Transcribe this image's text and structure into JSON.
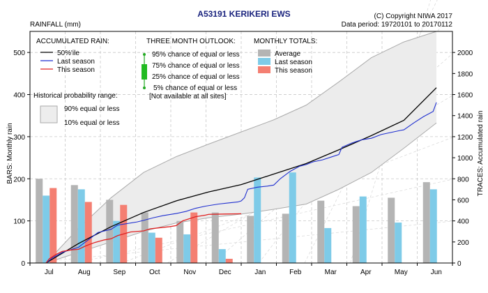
{
  "header": {
    "title": "A53191  KERIKERI EWS",
    "copyright": "(C) Copyright NIWA  2017",
    "data_period": "Data period:  19720101  to  20170112",
    "units": "RAINFALL (mm)"
  },
  "axes": {
    "left_label": "BARS: Monthly rain",
    "right_label": "TRACES: Accumulated rain"
  },
  "legend_accum": {
    "title": "ACCUMULATED RAIN:",
    "items": [
      "50%'ile",
      "Last season",
      "This season"
    ],
    "colors": [
      "#000000",
      "#1f2fd0",
      "#e02020"
    ]
  },
  "legend_hist": {
    "title": "Historical probability range:",
    "items": [
      "90% equal or less",
      "10% equal or less"
    ]
  },
  "legend_outlook": {
    "title": "THREE MONTH OUTLOOK:",
    "items": [
      "95% chance of equal or less",
      "75% chance of equal or less",
      "25% chance of equal or less",
      "5% chance of equal or less"
    ],
    "note": "[Not available at all sites]"
  },
  "legend_monthly": {
    "title": "MONTHLY TOTALS:",
    "items": [
      "Average",
      "Last season",
      "This season"
    ],
    "colors": [
      "#b4b4b4",
      "#7ecbe8",
      "#f47f72"
    ]
  },
  "chart_data": {
    "type": "bar",
    "categories": [
      "Jul",
      "Aug",
      "Sep",
      "Oct",
      "Nov",
      "Dec",
      "Jan",
      "Feb",
      "Mar",
      "Apr",
      "May",
      "Jun"
    ],
    "ylim_left": [
      0,
      550
    ],
    "left_ticks": [
      0,
      100,
      200,
      300,
      400,
      500
    ],
    "ylim_right": [
      0,
      2200
    ],
    "right_ticks": [
      0,
      200,
      400,
      600,
      800,
      1000,
      1200,
      1400,
      1600,
      1800,
      2000
    ],
    "series": [
      {
        "name": "Average",
        "color": "#b4b4b4",
        "values": [
          200,
          185,
          150,
          120,
          100,
          120,
          112,
          117,
          148,
          135,
          155,
          192
        ]
      },
      {
        "name": "Last season",
        "color": "#7ecbe8",
        "values": [
          160,
          175,
          100,
          72,
          68,
          33,
          203,
          215,
          83,
          158,
          96,
          175
        ]
      },
      {
        "name": "This season",
        "color": "#f47f72",
        "values": [
          178,
          145,
          138,
          60,
          120,
          10,
          null,
          null,
          null,
          null,
          null,
          null
        ]
      }
    ],
    "accumulated": {
      "x_unit": "month index from 1 Jul",
      "median": {
        "name": "50%'ile",
        "color": "#000000",
        "points": [
          [
            0,
            0
          ],
          [
            1,
            185
          ],
          [
            2,
            345
          ],
          [
            3,
            480
          ],
          [
            4,
            590
          ],
          [
            5,
            675
          ],
          [
            6,
            745
          ],
          [
            7,
            845
          ],
          [
            8,
            945
          ],
          [
            9,
            1075
          ],
          [
            10,
            1210
          ],
          [
            11,
            1355
          ],
          [
            12,
            1665
          ]
        ]
      },
      "p90": {
        "name": "90% equal or less",
        "points": [
          [
            0,
            0
          ],
          [
            1,
            330
          ],
          [
            2,
            620
          ],
          [
            3,
            860
          ],
          [
            4,
            1010
          ],
          [
            5,
            1130
          ],
          [
            6,
            1245
          ],
          [
            7,
            1360
          ],
          [
            8,
            1500
          ],
          [
            9,
            1720
          ],
          [
            10,
            1950
          ],
          [
            11,
            2100
          ],
          [
            12,
            2200
          ]
        ]
      },
      "p10": {
        "name": "10% equal or less",
        "points": [
          [
            0,
            0
          ],
          [
            1,
            100
          ],
          [
            2,
            200
          ],
          [
            3,
            300
          ],
          [
            4,
            380
          ],
          [
            5,
            430
          ],
          [
            6,
            465
          ],
          [
            7,
            510
          ],
          [
            8,
            560
          ],
          [
            9,
            700
          ],
          [
            10,
            860
          ],
          [
            11,
            1090
          ],
          [
            12,
            1330
          ]
        ]
      },
      "last_season": {
        "name": "Last season",
        "color": "#1f2fd0",
        "points": [
          [
            0,
            0
          ],
          [
            0.2,
            50
          ],
          [
            0.5,
            100
          ],
          [
            0.8,
            130
          ],
          [
            1,
            150
          ],
          [
            1.3,
            220
          ],
          [
            1.6,
            290
          ],
          [
            2,
            320
          ],
          [
            2.2,
            360
          ],
          [
            2.5,
            375
          ],
          [
            2.8,
            390
          ],
          [
            3,
            405
          ],
          [
            3.3,
            430
          ],
          [
            3.6,
            450
          ],
          [
            4,
            470
          ],
          [
            4.3,
            490
          ],
          [
            4.6,
            520
          ],
          [
            4.9,
            540
          ],
          [
            5,
            545
          ],
          [
            5.3,
            560
          ],
          [
            5.6,
            570
          ],
          [
            5.9,
            580
          ],
          [
            6,
            590
          ],
          [
            6.1,
            620
          ],
          [
            6.2,
            700
          ],
          [
            6.5,
            720
          ],
          [
            6.8,
            730
          ],
          [
            7,
            740
          ],
          [
            7.2,
            800
          ],
          [
            7.5,
            870
          ],
          [
            7.8,
            920
          ],
          [
            8,
            935
          ],
          [
            8.2,
            960
          ],
          [
            8.5,
            980
          ],
          [
            8.8,
            1010
          ],
          [
            9,
            1030
          ],
          [
            9.1,
            1100
          ],
          [
            9.4,
            1140
          ],
          [
            9.7,
            1170
          ],
          [
            10,
            1185
          ],
          [
            10.3,
            1220
          ],
          [
            10.6,
            1240
          ],
          [
            10.9,
            1260
          ],
          [
            11,
            1265
          ],
          [
            11.3,
            1330
          ],
          [
            11.6,
            1390
          ],
          [
            11.9,
            1440
          ],
          [
            12,
            1525
          ]
        ]
      },
      "this_season": {
        "name": "This season",
        "color": "#e02020",
        "points": [
          [
            0,
            0
          ],
          [
            0.1,
            40
          ],
          [
            0.3,
            80
          ],
          [
            0.5,
            110
          ],
          [
            0.8,
            125
          ],
          [
            1,
            130
          ],
          [
            1.2,
            160
          ],
          [
            1.5,
            195
          ],
          [
            1.8,
            220
          ],
          [
            2,
            230
          ],
          [
            2.2,
            260
          ],
          [
            2.6,
            295
          ],
          [
            3,
            305
          ],
          [
            3.2,
            325
          ],
          [
            3.5,
            335
          ],
          [
            3.8,
            345
          ],
          [
            4,
            355
          ],
          [
            4.2,
            400
          ],
          [
            4.6,
            440
          ],
          [
            4.9,
            455
          ],
          [
            5,
            462
          ],
          [
            5.5,
            465
          ],
          [
            5.9,
            467
          ],
          [
            6,
            468
          ]
        ]
      }
    },
    "outlook_available": false
  }
}
